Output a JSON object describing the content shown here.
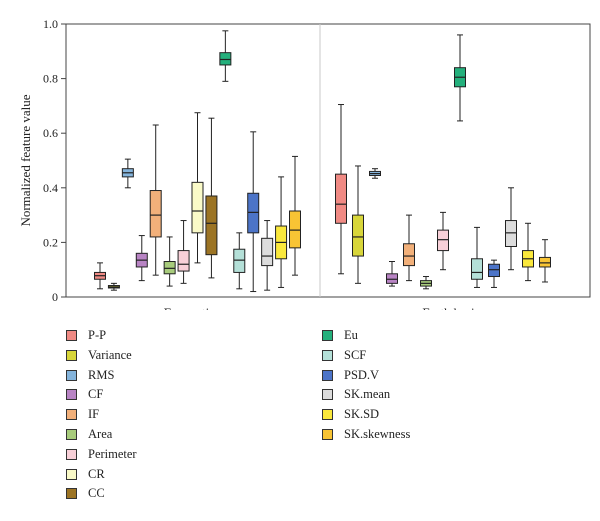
{
  "chart_data": {
    "type": "box",
    "ylabel": "Normalized feature value",
    "ylim": [
      0,
      1.0
    ],
    "yticks": [
      "0",
      "0.2",
      "0.4",
      "0.6",
      "0.8",
      "1.0"
    ],
    "groups": [
      "Excavation",
      "Earth boring"
    ],
    "legend_placement": "below",
    "series": [
      {
        "name": "P-P",
        "color": "#f08a84",
        "boxes": [
          {
            "min": 0.03,
            "q1": 0.065,
            "median": 0.078,
            "q3": 0.09,
            "max": 0.125
          },
          {
            "min": 0.085,
            "q1": 0.27,
            "median": 0.34,
            "q3": 0.45,
            "max": 0.705
          }
        ]
      },
      {
        "name": "Variance",
        "color": "#d8d63a",
        "boxes": [
          {
            "min": 0.025,
            "q1": 0.033,
            "median": 0.037,
            "q3": 0.042,
            "max": 0.05
          },
          {
            "min": 0.05,
            "q1": 0.15,
            "median": 0.22,
            "q3": 0.3,
            "max": 0.48
          }
        ]
      },
      {
        "name": "RMS",
        "color": "#84b4dc",
        "boxes": [
          {
            "min": 0.4,
            "q1": 0.44,
            "median": 0.455,
            "q3": 0.47,
            "max": 0.505
          },
          {
            "min": 0.435,
            "q1": 0.445,
            "median": 0.452,
            "q3": 0.46,
            "max": 0.47
          }
        ]
      },
      {
        "name": "CF",
        "color": "#b884c4",
        "boxes": [
          {
            "min": 0.06,
            "q1": 0.11,
            "median": 0.135,
            "q3": 0.16,
            "max": 0.225
          },
          {
            "min": 0.04,
            "q1": 0.05,
            "median": 0.065,
            "q3": 0.085,
            "max": 0.13
          }
        ]
      },
      {
        "name": "IF",
        "color": "#f2b07a",
        "boxes": [
          {
            "min": 0.08,
            "q1": 0.22,
            "median": 0.3,
            "q3": 0.39,
            "max": 0.63
          },
          {
            "min": 0.06,
            "q1": 0.115,
            "median": 0.15,
            "q3": 0.195,
            "max": 0.3
          }
        ]
      },
      {
        "name": "Area",
        "color": "#a8cc7c",
        "boxes": [
          {
            "min": 0.04,
            "q1": 0.085,
            "median": 0.105,
            "q3": 0.13,
            "max": 0.22
          },
          {
            "min": 0.03,
            "q1": 0.04,
            "median": 0.05,
            "q3": 0.06,
            "max": 0.075
          }
        ]
      },
      {
        "name": "Perimeter",
        "color": "#f8d0d8",
        "boxes": [
          {
            "min": 0.05,
            "q1": 0.095,
            "median": 0.12,
            "q3": 0.17,
            "max": 0.28
          },
          {
            "min": 0.1,
            "q1": 0.17,
            "median": 0.21,
            "q3": 0.245,
            "max": 0.31
          }
        ]
      },
      {
        "name": "CR",
        "color": "#fafac8",
        "boxes": [
          {
            "min": 0.125,
            "q1": 0.235,
            "median": 0.315,
            "q3": 0.42,
            "max": 0.675
          }
        ]
      },
      {
        "name": "CC",
        "color": "#9c7424",
        "boxes": [
          {
            "min": 0.07,
            "q1": 0.155,
            "median": 0.27,
            "q3": 0.37,
            "max": 0.655
          }
        ]
      },
      {
        "name": "Eu",
        "color": "#24b07c",
        "boxes": [
          {
            "min": 0.79,
            "q1": 0.85,
            "median": 0.87,
            "q3": 0.895,
            "max": 0.975
          },
          {
            "min": 0.645,
            "q1": 0.77,
            "median": 0.805,
            "q3": 0.84,
            "max": 0.96
          }
        ]
      },
      {
        "name": "SCF",
        "color": "#b4e0d8",
        "boxes": [
          {
            "min": 0.03,
            "q1": 0.09,
            "median": 0.135,
            "q3": 0.175,
            "max": 0.235
          },
          {
            "min": 0.035,
            "q1": 0.065,
            "median": 0.09,
            "q3": 0.14,
            "max": 0.255
          }
        ]
      },
      {
        "name": "PSD.V",
        "color": "#4c74c8",
        "boxes": [
          {
            "min": 0.02,
            "q1": 0.235,
            "median": 0.31,
            "q3": 0.38,
            "max": 0.605
          },
          {
            "min": 0.035,
            "q1": 0.075,
            "median": 0.1,
            "q3": 0.12,
            "max": 0.135
          }
        ]
      },
      {
        "name": "SK.mean",
        "color": "#dcdcdc",
        "boxes": [
          {
            "min": 0.025,
            "q1": 0.115,
            "median": 0.15,
            "q3": 0.215,
            "max": 0.28
          },
          {
            "min": 0.1,
            "q1": 0.185,
            "median": 0.235,
            "q3": 0.28,
            "max": 0.4
          }
        ]
      },
      {
        "name": "SK.SD",
        "color": "#fae83c",
        "boxes": [
          {
            "min": 0.035,
            "q1": 0.14,
            "median": 0.2,
            "q3": 0.26,
            "max": 0.44
          },
          {
            "min": 0.06,
            "q1": 0.11,
            "median": 0.14,
            "q3": 0.17,
            "max": 0.27
          }
        ]
      },
      {
        "name": "SK.skewness",
        "color": "#f8c434",
        "boxes": [
          {
            "min": 0.08,
            "q1": 0.18,
            "median": 0.245,
            "q3": 0.315,
            "max": 0.515
          },
          {
            "min": 0.055,
            "q1": 0.11,
            "median": 0.125,
            "q3": 0.145,
            "max": 0.21
          }
        ]
      }
    ]
  },
  "legend": {
    "items": [
      {
        "name": "P-P",
        "color": "#f08a84"
      },
      {
        "name": "Variance",
        "color": "#d8d63a"
      },
      {
        "name": "RMS",
        "color": "#84b4dc"
      },
      {
        "name": "CF",
        "color": "#b884c4"
      },
      {
        "name": "IF",
        "color": "#f2b07a"
      },
      {
        "name": "Area",
        "color": "#a8cc7c"
      },
      {
        "name": "Perimeter",
        "color": "#f8d0d8"
      },
      {
        "name": "CR",
        "color": "#fafac8"
      },
      {
        "name": "CC",
        "color": "#9c7424"
      },
      {
        "name": "Eu",
        "color": "#24b07c"
      },
      {
        "name": "SCF",
        "color": "#b4e0d8"
      },
      {
        "name": "PSD.V",
        "color": "#4c74c8"
      },
      {
        "name": "SK.mean",
        "color": "#dcdcdc"
      },
      {
        "name": "SK.SD",
        "color": "#fae83c"
      },
      {
        "name": "SK.skewness",
        "color": "#f8c434"
      }
    ]
  }
}
